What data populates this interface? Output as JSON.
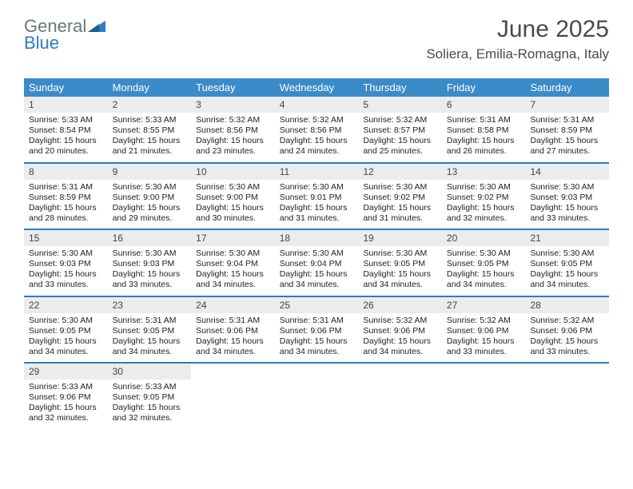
{
  "logo": {
    "general": "General",
    "blue": "Blue"
  },
  "title": "June 2025",
  "subtitle": "Soliera, Emilia-Romagna, Italy",
  "colors": {
    "header_bg": "#3b8bc8",
    "header_text": "#ffffff",
    "week_divider": "#2e7cc2",
    "daynum_bg": "#ececec",
    "text": "#222222",
    "logo_gray": "#6c757d",
    "logo_blue": "#2e7cc2",
    "background": "#ffffff"
  },
  "day_headers": [
    "Sunday",
    "Monday",
    "Tuesday",
    "Wednesday",
    "Thursday",
    "Friday",
    "Saturday"
  ],
  "weeks": [
    [
      {
        "n": "1",
        "sr": "Sunrise: 5:33 AM",
        "ss": "Sunset: 8:54 PM",
        "d1": "Daylight: 15 hours",
        "d2": "and 20 minutes."
      },
      {
        "n": "2",
        "sr": "Sunrise: 5:33 AM",
        "ss": "Sunset: 8:55 PM",
        "d1": "Daylight: 15 hours",
        "d2": "and 21 minutes."
      },
      {
        "n": "3",
        "sr": "Sunrise: 5:32 AM",
        "ss": "Sunset: 8:56 PM",
        "d1": "Daylight: 15 hours",
        "d2": "and 23 minutes."
      },
      {
        "n": "4",
        "sr": "Sunrise: 5:32 AM",
        "ss": "Sunset: 8:56 PM",
        "d1": "Daylight: 15 hours",
        "d2": "and 24 minutes."
      },
      {
        "n": "5",
        "sr": "Sunrise: 5:32 AM",
        "ss": "Sunset: 8:57 PM",
        "d1": "Daylight: 15 hours",
        "d2": "and 25 minutes."
      },
      {
        "n": "6",
        "sr": "Sunrise: 5:31 AM",
        "ss": "Sunset: 8:58 PM",
        "d1": "Daylight: 15 hours",
        "d2": "and 26 minutes."
      },
      {
        "n": "7",
        "sr": "Sunrise: 5:31 AM",
        "ss": "Sunset: 8:59 PM",
        "d1": "Daylight: 15 hours",
        "d2": "and 27 minutes."
      }
    ],
    [
      {
        "n": "8",
        "sr": "Sunrise: 5:31 AM",
        "ss": "Sunset: 8:59 PM",
        "d1": "Daylight: 15 hours",
        "d2": "and 28 minutes."
      },
      {
        "n": "9",
        "sr": "Sunrise: 5:30 AM",
        "ss": "Sunset: 9:00 PM",
        "d1": "Daylight: 15 hours",
        "d2": "and 29 minutes."
      },
      {
        "n": "10",
        "sr": "Sunrise: 5:30 AM",
        "ss": "Sunset: 9:00 PM",
        "d1": "Daylight: 15 hours",
        "d2": "and 30 minutes."
      },
      {
        "n": "11",
        "sr": "Sunrise: 5:30 AM",
        "ss": "Sunset: 9:01 PM",
        "d1": "Daylight: 15 hours",
        "d2": "and 31 minutes."
      },
      {
        "n": "12",
        "sr": "Sunrise: 5:30 AM",
        "ss": "Sunset: 9:02 PM",
        "d1": "Daylight: 15 hours",
        "d2": "and 31 minutes."
      },
      {
        "n": "13",
        "sr": "Sunrise: 5:30 AM",
        "ss": "Sunset: 9:02 PM",
        "d1": "Daylight: 15 hours",
        "d2": "and 32 minutes."
      },
      {
        "n": "14",
        "sr": "Sunrise: 5:30 AM",
        "ss": "Sunset: 9:03 PM",
        "d1": "Daylight: 15 hours",
        "d2": "and 33 minutes."
      }
    ],
    [
      {
        "n": "15",
        "sr": "Sunrise: 5:30 AM",
        "ss": "Sunset: 9:03 PM",
        "d1": "Daylight: 15 hours",
        "d2": "and 33 minutes."
      },
      {
        "n": "16",
        "sr": "Sunrise: 5:30 AM",
        "ss": "Sunset: 9:03 PM",
        "d1": "Daylight: 15 hours",
        "d2": "and 33 minutes."
      },
      {
        "n": "17",
        "sr": "Sunrise: 5:30 AM",
        "ss": "Sunset: 9:04 PM",
        "d1": "Daylight: 15 hours",
        "d2": "and 34 minutes."
      },
      {
        "n": "18",
        "sr": "Sunrise: 5:30 AM",
        "ss": "Sunset: 9:04 PM",
        "d1": "Daylight: 15 hours",
        "d2": "and 34 minutes."
      },
      {
        "n": "19",
        "sr": "Sunrise: 5:30 AM",
        "ss": "Sunset: 9:05 PM",
        "d1": "Daylight: 15 hours",
        "d2": "and 34 minutes."
      },
      {
        "n": "20",
        "sr": "Sunrise: 5:30 AM",
        "ss": "Sunset: 9:05 PM",
        "d1": "Daylight: 15 hours",
        "d2": "and 34 minutes."
      },
      {
        "n": "21",
        "sr": "Sunrise: 5:30 AM",
        "ss": "Sunset: 9:05 PM",
        "d1": "Daylight: 15 hours",
        "d2": "and 34 minutes."
      }
    ],
    [
      {
        "n": "22",
        "sr": "Sunrise: 5:30 AM",
        "ss": "Sunset: 9:05 PM",
        "d1": "Daylight: 15 hours",
        "d2": "and 34 minutes."
      },
      {
        "n": "23",
        "sr": "Sunrise: 5:31 AM",
        "ss": "Sunset: 9:05 PM",
        "d1": "Daylight: 15 hours",
        "d2": "and 34 minutes."
      },
      {
        "n": "24",
        "sr": "Sunrise: 5:31 AM",
        "ss": "Sunset: 9:06 PM",
        "d1": "Daylight: 15 hours",
        "d2": "and 34 minutes."
      },
      {
        "n": "25",
        "sr": "Sunrise: 5:31 AM",
        "ss": "Sunset: 9:06 PM",
        "d1": "Daylight: 15 hours",
        "d2": "and 34 minutes."
      },
      {
        "n": "26",
        "sr": "Sunrise: 5:32 AM",
        "ss": "Sunset: 9:06 PM",
        "d1": "Daylight: 15 hours",
        "d2": "and 34 minutes."
      },
      {
        "n": "27",
        "sr": "Sunrise: 5:32 AM",
        "ss": "Sunset: 9:06 PM",
        "d1": "Daylight: 15 hours",
        "d2": "and 33 minutes."
      },
      {
        "n": "28",
        "sr": "Sunrise: 5:32 AM",
        "ss": "Sunset: 9:06 PM",
        "d1": "Daylight: 15 hours",
        "d2": "and 33 minutes."
      }
    ],
    [
      {
        "n": "29",
        "sr": "Sunrise: 5:33 AM",
        "ss": "Sunset: 9:06 PM",
        "d1": "Daylight: 15 hours",
        "d2": "and 32 minutes."
      },
      {
        "n": "30",
        "sr": "Sunrise: 5:33 AM",
        "ss": "Sunset: 9:05 PM",
        "d1": "Daylight: 15 hours",
        "d2": "and 32 minutes."
      },
      {
        "empty": true
      },
      {
        "empty": true
      },
      {
        "empty": true
      },
      {
        "empty": true
      },
      {
        "empty": true
      }
    ]
  ]
}
